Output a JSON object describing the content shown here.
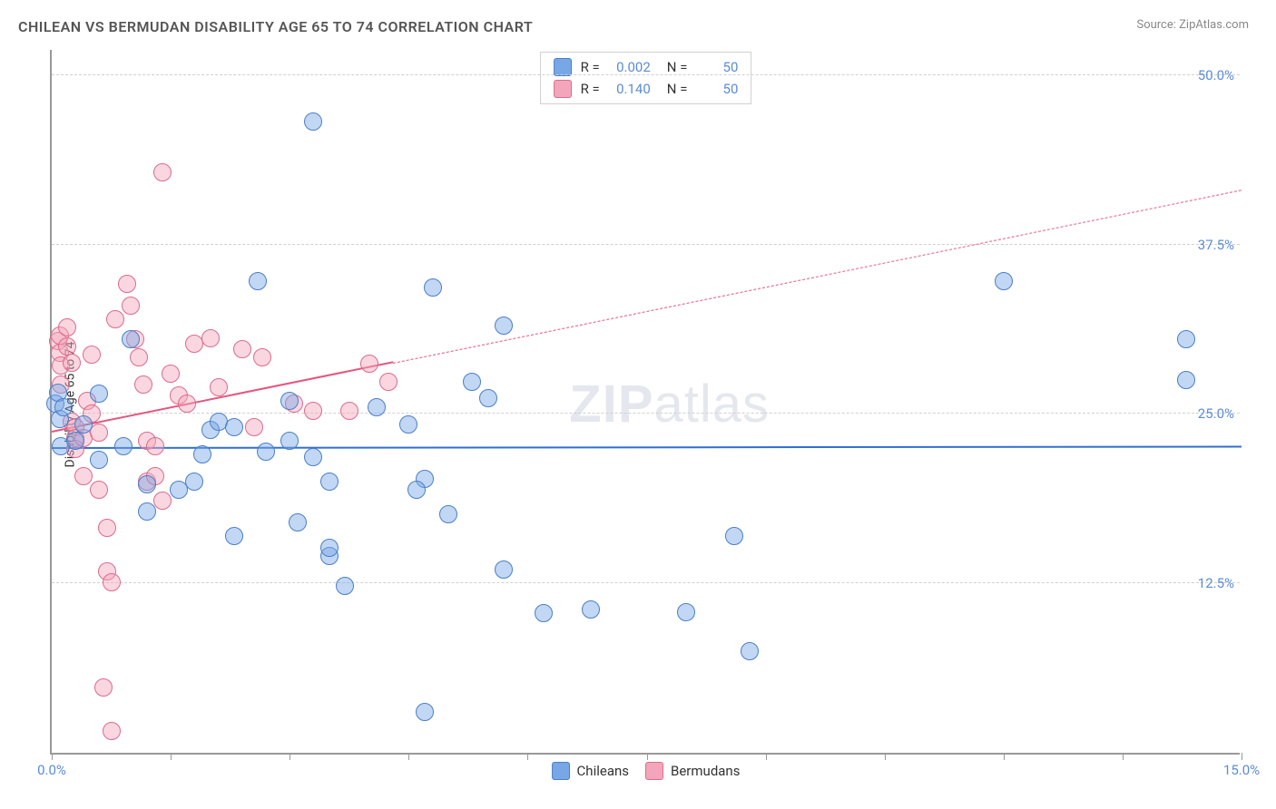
{
  "title": "CHILEAN VS BERMUDAN DISABILITY AGE 65 TO 74 CORRELATION CHART",
  "source": "Source: ZipAtlas.com",
  "ylabel": "Disability Age 65 to 74",
  "watermark": {
    "bold": "ZIP",
    "rest": "atlas"
  },
  "chart": {
    "type": "scatter",
    "background_color": "#ffffff",
    "grid_color": "#d0d0d0",
    "axis_color": "#999999",
    "label_color": "#5b8cd8",
    "xlim": [
      0,
      15
    ],
    "ylim": [
      0,
      52
    ],
    "xticks": [
      0,
      1.5,
      3.0,
      4.5,
      6.0,
      7.5,
      9.0,
      10.5,
      12.0,
      13.5,
      15.0
    ],
    "xtick_labels": {
      "0": "0.0%",
      "15": "15.0%"
    },
    "yticks": [
      12.5,
      25.0,
      37.5,
      50.0
    ],
    "point_radius": 10,
    "point_border_width": 1.2,
    "point_fill_opacity": 0.45,
    "series": [
      {
        "name": "Chileans",
        "color": "#78a7e6",
        "border_color": "#4a7fc8",
        "stats": {
          "R": "0.002",
          "N": "50"
        },
        "trend": {
          "color": "#2f6fd0",
          "width": 2.5,
          "y_start": 22.4,
          "y_end": 22.5,
          "dashed_after_x": null
        },
        "points": [
          [
            0.05,
            25.8
          ],
          [
            0.08,
            26.6
          ],
          [
            0.1,
            24.6
          ],
          [
            0.12,
            22.6
          ],
          [
            0.15,
            25.5
          ],
          [
            3.3,
            46.6
          ],
          [
            2.6,
            34.8
          ],
          [
            4.8,
            34.3
          ],
          [
            5.7,
            31.5
          ],
          [
            5.3,
            27.4
          ],
          [
            1.0,
            30.5
          ],
          [
            0.9,
            22.6
          ],
          [
            4.7,
            20.2
          ],
          [
            1.2,
            19.8
          ],
          [
            1.2,
            17.8
          ],
          [
            1.6,
            19.4
          ],
          [
            1.8,
            20.0
          ],
          [
            2.0,
            23.8
          ],
          [
            2.1,
            24.4
          ],
          [
            2.3,
            24.0
          ],
          [
            2.7,
            22.2
          ],
          [
            2.3,
            16.0
          ],
          [
            3.0,
            26.0
          ],
          [
            3.0,
            23.0
          ],
          [
            3.1,
            17.0
          ],
          [
            3.3,
            21.8
          ],
          [
            3.5,
            20.0
          ],
          [
            3.5,
            14.5
          ],
          [
            3.5,
            15.1
          ],
          [
            4.1,
            25.5
          ],
          [
            4.5,
            24.2
          ],
          [
            3.7,
            12.3
          ],
          [
            4.6,
            19.4
          ],
          [
            4.7,
            3.0
          ],
          [
            5.0,
            17.6
          ],
          [
            5.5,
            26.2
          ],
          [
            5.7,
            13.5
          ],
          [
            6.2,
            10.3
          ],
          [
            6.8,
            10.6
          ],
          [
            8.0,
            10.4
          ],
          [
            8.6,
            16.0
          ],
          [
            8.8,
            7.5
          ],
          [
            12.0,
            34.8
          ],
          [
            14.3,
            30.5
          ],
          [
            14.3,
            27.5
          ],
          [
            0.3,
            23.0
          ],
          [
            0.4,
            24.2
          ],
          [
            0.6,
            26.5
          ],
          [
            0.6,
            21.6
          ],
          [
            1.9,
            22.0
          ]
        ]
      },
      {
        "name": "Bermudans",
        "color": "#f3a6bb",
        "border_color": "#dd6a8d",
        "stats": {
          "R": "0.140",
          "N": "50"
        },
        "trend": {
          "color": "#e5567f",
          "width": 2,
          "y_start": 23.6,
          "y_end": 41.5,
          "dashed_after_x": 4.3
        },
        "points": [
          [
            0.08,
            30.4
          ],
          [
            0.1,
            30.8
          ],
          [
            0.1,
            29.5
          ],
          [
            0.12,
            28.6
          ],
          [
            0.12,
            27.2
          ],
          [
            0.2,
            31.4
          ],
          [
            0.2,
            30.0
          ],
          [
            0.25,
            28.8
          ],
          [
            0.25,
            24.4
          ],
          [
            0.3,
            24.0
          ],
          [
            0.3,
            23.2
          ],
          [
            0.3,
            22.4
          ],
          [
            0.4,
            23.2
          ],
          [
            0.4,
            20.4
          ],
          [
            0.45,
            26.0
          ],
          [
            0.5,
            25.0
          ],
          [
            0.5,
            29.4
          ],
          [
            0.6,
            23.6
          ],
          [
            0.6,
            19.4
          ],
          [
            0.65,
            4.8
          ],
          [
            0.7,
            16.6
          ],
          [
            0.7,
            13.4
          ],
          [
            0.75,
            12.6
          ],
          [
            0.75,
            1.6
          ],
          [
            0.8,
            32.0
          ],
          [
            0.95,
            34.6
          ],
          [
            1.0,
            33.0
          ],
          [
            1.05,
            30.5
          ],
          [
            1.1,
            29.2
          ],
          [
            1.15,
            27.2
          ],
          [
            1.2,
            23.0
          ],
          [
            1.2,
            20.0
          ],
          [
            1.3,
            22.6
          ],
          [
            1.3,
            20.4
          ],
          [
            1.4,
            42.8
          ],
          [
            1.4,
            18.6
          ],
          [
            1.5,
            28.0
          ],
          [
            1.6,
            26.4
          ],
          [
            1.7,
            25.8
          ],
          [
            1.8,
            30.2
          ],
          [
            2.0,
            30.6
          ],
          [
            2.1,
            27.0
          ],
          [
            2.4,
            29.8
          ],
          [
            2.55,
            24.0
          ],
          [
            2.65,
            29.2
          ],
          [
            3.05,
            25.8
          ],
          [
            3.3,
            25.2
          ],
          [
            3.75,
            25.2
          ],
          [
            4.0,
            28.7
          ],
          [
            4.25,
            27.4
          ]
        ]
      }
    ]
  },
  "legend_labels": {
    "R": "R =",
    "N": "N =",
    "chileans": "Chileans",
    "bermudans": "Bermudans"
  }
}
